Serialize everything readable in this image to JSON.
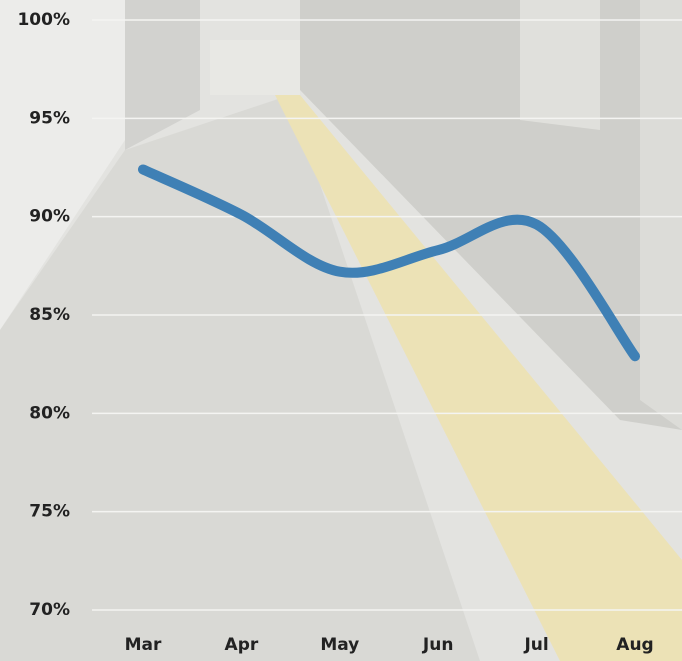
{
  "chart_data": {
    "type": "line",
    "categories": [
      "Mar",
      "Apr",
      "May",
      "Jun",
      "Jul",
      "Aug"
    ],
    "series": [
      {
        "color": "#3f80b5",
        "values": [
          92.4,
          90.1,
          87.2,
          88.3,
          89.6,
          82.9
        ]
      }
    ],
    "ylim": [
      70,
      100
    ],
    "yticks": [
      {
        "value": 70,
        "label": "70%"
      },
      {
        "value": 75,
        "label": "75%"
      },
      {
        "value": 80,
        "label": "80%"
      },
      {
        "value": 85,
        "label": "85%"
      },
      {
        "value": 90,
        "label": "90%"
      },
      {
        "value": 95,
        "label": "95%"
      },
      {
        "value": 100,
        "label": "100%"
      }
    ],
    "grid": true
  }
}
